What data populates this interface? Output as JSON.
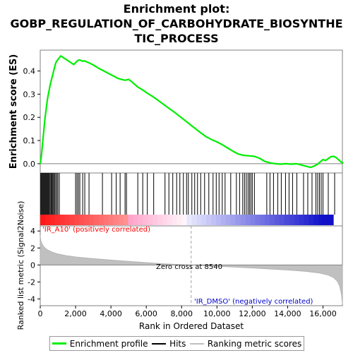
{
  "title": {
    "line1": "Enrichment plot:",
    "line2": "GOBP_REGULATION_OF_CARBOHYDRATE_BIOSYNTHE",
    "line3": "TIC_PROCESS"
  },
  "chart_data": {
    "type": "line",
    "panels": {
      "enrichment": {
        "ylabel": "Enrichment score (ES)",
        "ylim": [
          -0.04,
          0.49
        ],
        "yticks": [
          "0.0",
          "0.1",
          "0.2",
          "0.3",
          "0.4"
        ],
        "ytick_values": [
          0.0,
          0.1,
          0.2,
          0.3,
          0.4
        ],
        "series": [
          {
            "name": "Enrichment profile",
            "color": "#00ee00",
            "x": [
              0,
              60,
              110,
              160,
              210,
              260,
              310,
              360,
              410,
              460,
              510,
              560,
              610,
              660,
              710,
              760,
              810,
              860,
              910,
              960,
              1010,
              1060,
              1160,
              1300,
              1500,
              1700,
              1900,
              2000,
              2100,
              2200,
              2300,
              2400,
              2500,
              2600,
              2800,
              3000,
              3300,
              3600,
              3900,
              4200,
              4400,
              4600,
              4800,
              5000,
              5200,
              5500,
              5800,
              6100,
              6400,
              6700,
              7000,
              7300,
              7600,
              7900,
              8200,
              8500,
              8800,
              9100,
              9400,
              9700,
              10000,
              10300,
              10600,
              10900,
              11200,
              11500,
              11800,
              12100,
              12400,
              12700,
              13000,
              13300,
              13600,
              13900,
              14200,
              14500,
              14800,
              15100,
              15300,
              15500,
              15700,
              15850,
              16000,
              16150,
              16300,
              16450,
              16600,
              16750,
              16900,
              17050,
              17150
            ],
            "y": [
              0.0,
              0.03,
              0.07,
              0.11,
              0.15,
              0.19,
              0.22,
              0.25,
              0.28,
              0.3,
              0.32,
              0.34,
              0.355,
              0.37,
              0.385,
              0.4,
              0.415,
              0.43,
              0.44,
              0.445,
              0.45,
              0.455,
              0.465,
              0.458,
              0.448,
              0.438,
              0.428,
              0.436,
              0.444,
              0.448,
              0.446,
              0.442,
              0.444,
              0.44,
              0.434,
              0.426,
              0.412,
              0.4,
              0.388,
              0.376,
              0.368,
              0.364,
              0.36,
              0.364,
              0.352,
              0.332,
              0.318,
              0.302,
              0.288,
              0.272,
              0.255,
              0.238,
              0.222,
              0.204,
              0.186,
              0.168,
              0.15,
              0.132,
              0.116,
              0.104,
              0.094,
              0.082,
              0.068,
              0.054,
              0.042,
              0.036,
              0.034,
              0.032,
              0.024,
              0.01,
              0.004,
              0.0,
              -0.002,
              0.0,
              -0.002,
              0.0,
              -0.006,
              -0.012,
              -0.016,
              -0.01,
              -0.002,
              0.008,
              0.018,
              0.014,
              0.022,
              0.03,
              0.032,
              0.026,
              0.016,
              0.006,
              0.002
            ]
          }
        ]
      },
      "hits": {
        "name": "Hits",
        "positions": [
          30,
          70,
          110,
          150,
          190,
          230,
          270,
          310,
          350,
          390,
          430,
          470,
          510,
          560,
          610,
          660,
          710,
          760,
          810,
          870,
          940,
          1000,
          1080,
          2000,
          2080,
          2160,
          2240,
          2400,
          2520,
          2760,
          3520,
          4040,
          4300,
          4520,
          4800,
          4880,
          5520,
          5800,
          6060,
          6420,
          7060,
          7280,
          7500,
          7720,
          7900,
          8100,
          8280,
          8380,
          8580,
          8740,
          8900,
          9080,
          9300,
          9540,
          9780,
          9960,
          10120,
          10300,
          10460,
          10780,
          11100,
          11280,
          11460,
          11560,
          11660,
          11760,
          11840,
          11920,
          12000,
          12120,
          12820,
          13000,
          13200,
          13440,
          13640,
          13880,
          14080,
          14280,
          14520,
          14900,
          15140,
          15380,
          15600,
          15700,
          15800,
          15900,
          16000,
          16300,
          16660
        ]
      },
      "ranked": {
        "ylabel": "Ranked list metric (Signal2Noise)",
        "xlabel": "Rank in Ordered Dataset",
        "ylim": [
          -4.8,
          4.6
        ],
        "yticks": [
          "4",
          "2",
          "0",
          "-2",
          "-4"
        ],
        "ytick_values": [
          4,
          2,
          0,
          -2,
          -4
        ],
        "x_max": 17100,
        "xticks": [
          "0",
          "2,000",
          "4,000",
          "6,000",
          "8,000",
          "10,000",
          "12,000",
          "14,000",
          "16,000"
        ],
        "xtick_values": [
          0,
          2000,
          4000,
          6000,
          8000,
          10000,
          12000,
          14000,
          16000
        ],
        "metric_points": {
          "rank": [
            0,
            30,
            100,
            200,
            400,
            700,
            1000,
            1500,
            2000,
            3000,
            4000,
            5000,
            6000,
            7000,
            8000,
            8540,
            9000,
            10000,
            11000,
            12000,
            13000,
            14000,
            15000,
            15800,
            16300,
            16600,
            16800,
            16950,
            17050,
            17100
          ],
          "value": [
            3.5,
            2.9,
            2.5,
            2.15,
            1.8,
            1.5,
            1.3,
            1.1,
            0.95,
            0.75,
            0.58,
            0.42,
            0.28,
            0.14,
            0.04,
            0.0,
            -0.05,
            -0.16,
            -0.26,
            -0.36,
            -0.48,
            -0.6,
            -0.75,
            -0.95,
            -1.2,
            -1.5,
            -1.9,
            -2.5,
            -3.5,
            -4.6
          ]
        },
        "zero_cross_label": "Zero cross at 8540",
        "zero_cross": 8540,
        "pos_label": "'IR_A10' (positively correlated)",
        "neg_label": "'IR_DMSO' (negatively correlated)",
        "pos_color": "#ff0000",
        "neg_color": "#0000cc"
      }
    },
    "legend": [
      {
        "label": "Enrichment profile",
        "color": "#00ee00"
      },
      {
        "label": "Hits",
        "color": "#000000"
      },
      {
        "label": "Ranking metric scores",
        "color": "#c0c0c0"
      }
    ]
  }
}
